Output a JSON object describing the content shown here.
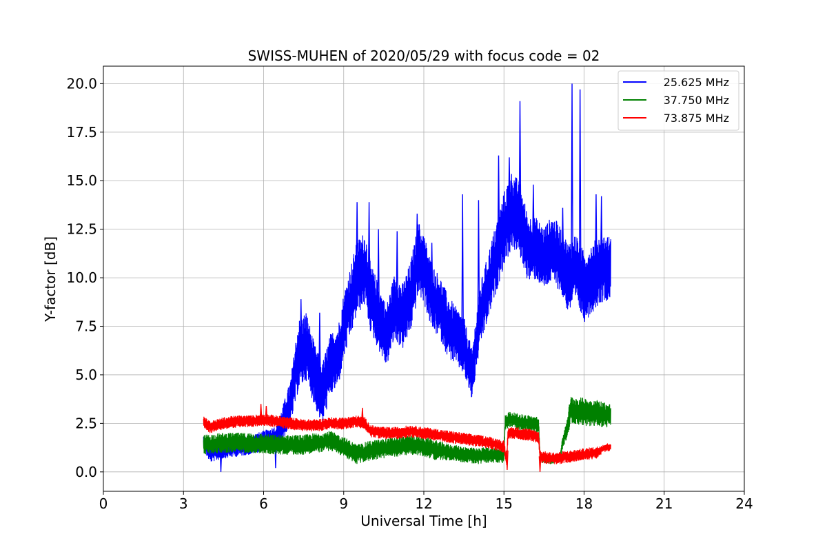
{
  "chart_data": {
    "type": "line",
    "title": "SWISS-MUHEN of 2020/05/29 with focus code = 02",
    "xlabel": "Universal Time [h]",
    "ylabel": "Y-factor [dB]",
    "xlim": [
      0,
      24
    ],
    "ylim": [
      -1.0,
      20.9
    ],
    "xticks": [
      0,
      3,
      6,
      9,
      12,
      15,
      18,
      21,
      24
    ],
    "xtick_labels": [
      "0",
      "3",
      "6",
      "9",
      "12",
      "15",
      "18",
      "21",
      "24"
    ],
    "yticks": [
      0.0,
      2.5,
      5.0,
      7.5,
      10.0,
      12.5,
      15.0,
      17.5,
      20.0
    ],
    "ytick_labels": [
      "0.0",
      "2.5",
      "5.0",
      "7.5",
      "10.0",
      "12.5",
      "15.0",
      "17.5",
      "20.0"
    ],
    "grid": true,
    "legend_position": "top-right",
    "series": [
      {
        "name": "25.625 MHz",
        "color": "#0000ff",
        "x": [
          3.75,
          4.0,
          4.5,
          5.0,
          5.5,
          6.0,
          6.5,
          7.0,
          7.3,
          7.6,
          7.9,
          8.2,
          8.5,
          8.8,
          9.0,
          9.2,
          9.5,
          9.8,
          10.0,
          10.3,
          10.6,
          10.9,
          11.2,
          11.5,
          11.8,
          12.0,
          12.3,
          12.6,
          12.9,
          13.2,
          13.5,
          13.8,
          14.1,
          14.4,
          14.7,
          15.0,
          15.3,
          15.6,
          15.9,
          16.2,
          16.5,
          16.8,
          17.1,
          17.4,
          17.7,
          18.0,
          18.3,
          18.6,
          19.0
        ],
        "y": [
          1.5,
          1.0,
          1.2,
          1.3,
          1.4,
          1.6,
          1.8,
          3.5,
          6.0,
          6.5,
          5.0,
          4.0,
          5.5,
          6.0,
          7.5,
          8.5,
          10.0,
          10.5,
          9.0,
          8.0,
          7.0,
          8.5,
          8.0,
          9.0,
          11.0,
          10.5,
          9.0,
          8.5,
          7.5,
          7.0,
          6.5,
          5.0,
          8.0,
          9.5,
          11.0,
          12.5,
          13.5,
          13.0,
          11.5,
          11.5,
          11.0,
          11.5,
          11.0,
          10.0,
          10.5,
          9.5,
          10.0,
          10.5,
          10.5
        ],
        "spread": [
          0.4,
          0.5,
          0.5,
          0.5,
          0.5,
          0.5,
          0.6,
          1.2,
          1.8,
          1.8,
          1.6,
          1.6,
          1.6,
          1.6,
          1.7,
          1.8,
          1.9,
          1.9,
          1.8,
          1.7,
          1.6,
          1.7,
          1.7,
          1.8,
          1.9,
          1.8,
          1.7,
          1.6,
          1.6,
          1.5,
          1.5,
          1.3,
          1.6,
          1.7,
          1.8,
          1.9,
          2.0,
          1.9,
          1.7,
          1.6,
          1.6,
          1.7,
          1.7,
          1.8,
          1.8,
          1.8,
          1.8,
          1.8,
          1.6
        ],
        "peaks_x": [
          7.4,
          8.1,
          9.5,
          9.95,
          10.3,
          11.0,
          11.75,
          12.3,
          13.45,
          14.05,
          14.8,
          15.2,
          15.6,
          16.1,
          17.2,
          17.55,
          17.85,
          18.45,
          18.65,
          4.4,
          6.45
        ],
        "peaks_y": [
          8.9,
          8.2,
          13.9,
          13.9,
          12.5,
          12.4,
          13.3,
          11.8,
          14.3,
          14.0,
          16.3,
          16.2,
          19.1,
          14.8,
          13.6,
          20.0,
          19.7,
          14.3,
          14.2,
          0.0,
          0.2
        ]
      },
      {
        "name": "37.750 MHz",
        "color": "#008000",
        "x": [
          3.75,
          4.5,
          5.5,
          6.5,
          7.5,
          8.0,
          8.5,
          9.0,
          9.5,
          10.0,
          10.5,
          11.0,
          11.5,
          12.0,
          12.5,
          13.0,
          13.5,
          14.0,
          14.5,
          15.0,
          15.05,
          15.2,
          15.5,
          16.0,
          16.3,
          16.35,
          16.8,
          17.1,
          17.2,
          17.35,
          17.5,
          18.0,
          18.5,
          19.0
        ],
        "y": [
          1.4,
          1.5,
          1.5,
          1.4,
          1.4,
          1.5,
          1.6,
          1.3,
          0.9,
          1.1,
          1.2,
          1.3,
          1.4,
          1.3,
          1.1,
          1.0,
          0.9,
          0.8,
          0.9,
          0.8,
          2.6,
          2.7,
          2.6,
          2.5,
          2.4,
          0.7,
          0.6,
          0.8,
          1.5,
          2.2,
          3.2,
          3.1,
          3.0,
          2.9
        ],
        "spread": [
          0.5,
          0.5,
          0.5,
          0.5,
          0.5,
          0.5,
          0.5,
          0.5,
          0.5,
          0.5,
          0.5,
          0.5,
          0.5,
          0.5,
          0.5,
          0.4,
          0.4,
          0.4,
          0.4,
          0.4,
          0.4,
          0.4,
          0.4,
          0.4,
          0.4,
          0.2,
          0.2,
          0.2,
          0.3,
          0.5,
          0.7,
          0.7,
          0.7,
          0.6
        ],
        "peaks_x": [],
        "peaks_y": []
      },
      {
        "name": "73.875 MHz",
        "color": "#ff0000",
        "x": [
          3.75,
          4.0,
          4.5,
          5.0,
          5.5,
          6.0,
          6.5,
          7.0,
          7.5,
          8.0,
          8.5,
          9.0,
          9.5,
          9.8,
          10.0,
          10.5,
          11.0,
          11.5,
          12.0,
          12.5,
          13.0,
          13.5,
          14.0,
          14.5,
          15.0,
          15.1,
          15.15,
          15.5,
          16.0,
          16.3,
          16.35,
          16.7,
          17.0,
          17.5,
          18.0,
          18.5,
          18.7,
          19.0
        ],
        "y": [
          2.6,
          2.3,
          2.5,
          2.6,
          2.6,
          2.7,
          2.6,
          2.5,
          2.4,
          2.4,
          2.5,
          2.5,
          2.6,
          2.5,
          2.1,
          2.0,
          2.0,
          2.1,
          2.0,
          1.9,
          1.8,
          1.7,
          1.6,
          1.5,
          1.3,
          0.5,
          2.0,
          2.0,
          1.9,
          1.8,
          0.8,
          0.7,
          0.7,
          0.8,
          0.9,
          1.0,
          1.2,
          1.3
        ],
        "spread": [
          0.3,
          0.3,
          0.3,
          0.3,
          0.3,
          0.3,
          0.3,
          0.3,
          0.3,
          0.3,
          0.3,
          0.3,
          0.3,
          0.3,
          0.3,
          0.3,
          0.3,
          0.3,
          0.3,
          0.3,
          0.3,
          0.3,
          0.3,
          0.3,
          0.3,
          0.3,
          0.3,
          0.3,
          0.3,
          0.3,
          0.3,
          0.3,
          0.3,
          0.3,
          0.3,
          0.3,
          0.2,
          0.2
        ],
        "peaks_x": [
          5.9,
          6.1,
          9.7,
          16.35,
          15.12
        ],
        "peaks_y": [
          3.5,
          3.4,
          3.3,
          0.0,
          0.1
        ]
      }
    ]
  }
}
